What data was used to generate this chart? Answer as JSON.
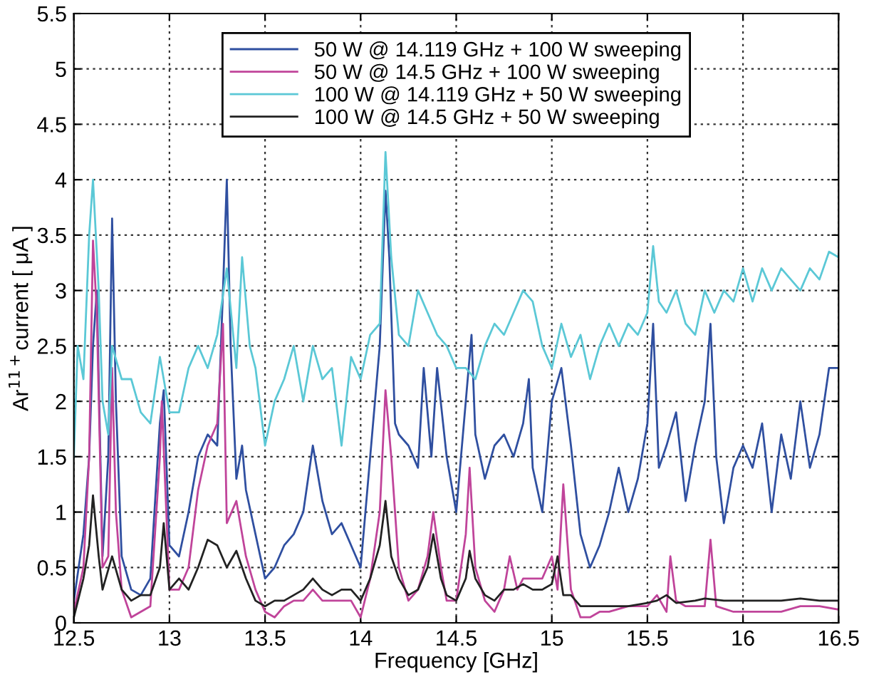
{
  "chart_data": {
    "type": "line",
    "xlabel": "Frequency [GHz]",
    "ylabel": "Ar$^{11+}$current [ μA ]",
    "xlim": [
      12.5,
      16.5
    ],
    "xticks": [
      12.5,
      13,
      13.5,
      14,
      14.5,
      15,
      15.5,
      16,
      16.5
    ],
    "ylim": [
      0,
      5.5
    ],
    "yticks": [
      0,
      0.5,
      1,
      1.5,
      2,
      2.5,
      3,
      3.5,
      4,
      4.5,
      5,
      5.5
    ],
    "grid": true,
    "legend": "top",
    "line_style": "solid",
    "series": [
      {
        "name": "50 W @ 14.119 GHz + 100 W sweeping",
        "color": "#2f4fa0",
        "x": [
          12.5,
          12.55,
          12.58,
          12.6,
          12.62,
          12.65,
          12.68,
          12.7,
          12.72,
          12.75,
          12.8,
          12.85,
          12.9,
          12.95,
          12.97,
          13.0,
          13.05,
          13.1,
          13.15,
          13.2,
          13.25,
          13.28,
          13.3,
          13.32,
          13.35,
          13.38,
          13.4,
          13.45,
          13.5,
          13.55,
          13.6,
          13.65,
          13.7,
          13.75,
          13.8,
          13.85,
          13.9,
          13.95,
          14.0,
          14.05,
          14.1,
          14.13,
          14.15,
          14.18,
          14.2,
          14.25,
          14.3,
          14.33,
          14.37,
          14.4,
          14.45,
          14.5,
          14.55,
          14.58,
          14.6,
          14.65,
          14.7,
          14.75,
          14.8,
          14.85,
          14.88,
          14.9,
          14.95,
          14.98,
          15.0,
          15.05,
          15.1,
          15.15,
          15.2,
          15.25,
          15.3,
          15.35,
          15.4,
          15.45,
          15.5,
          15.53,
          15.56,
          15.6,
          15.65,
          15.7,
          15.75,
          15.8,
          15.83,
          15.86,
          15.9,
          15.95,
          16.0,
          16.05,
          16.1,
          16.15,
          16.2,
          16.25,
          16.3,
          16.35,
          16.4,
          16.45,
          16.5
        ],
        "values": [
          0.2,
          0.8,
          1.5,
          2.5,
          3.0,
          0.6,
          1.5,
          3.65,
          2.0,
          0.6,
          0.3,
          0.25,
          0.4,
          1.8,
          2.1,
          0.7,
          0.6,
          1.0,
          1.5,
          1.7,
          1.6,
          3.0,
          4.0,
          2.5,
          1.3,
          1.6,
          1.2,
          0.8,
          0.4,
          0.5,
          0.7,
          0.8,
          1.0,
          1.6,
          1.1,
          0.8,
          0.9,
          0.7,
          0.5,
          1.5,
          2.5,
          3.9,
          3.3,
          1.8,
          1.7,
          1.6,
          1.4,
          2.3,
          1.5,
          2.3,
          1.5,
          1.0,
          2.0,
          2.6,
          1.7,
          1.3,
          1.6,
          1.7,
          1.5,
          1.8,
          2.2,
          1.4,
          1.0,
          1.6,
          2.0,
          2.3,
          1.6,
          0.8,
          0.5,
          0.7,
          1.0,
          1.4,
          1.0,
          1.3,
          1.8,
          2.7,
          1.4,
          1.6,
          1.9,
          1.1,
          1.6,
          2.0,
          2.7,
          1.5,
          0.9,
          1.4,
          1.6,
          1.4,
          1.8,
          1.0,
          1.7,
          1.3,
          2.0,
          1.4,
          1.7,
          2.3,
          2.3
        ]
      },
      {
        "name": "50 W @ 14.5 GHz + 100 W sweeping",
        "color": "#c0449a",
        "x": [
          12.5,
          12.55,
          12.58,
          12.6,
          12.62,
          12.65,
          12.68,
          12.7,
          12.72,
          12.75,
          12.8,
          12.85,
          12.9,
          12.95,
          12.96,
          13.0,
          13.05,
          13.1,
          13.15,
          13.2,
          13.25,
          13.28,
          13.3,
          13.35,
          13.4,
          13.45,
          13.5,
          13.55,
          13.6,
          13.65,
          13.7,
          13.75,
          13.8,
          13.85,
          13.9,
          13.95,
          14.0,
          14.05,
          14.1,
          14.13,
          14.16,
          14.2,
          14.25,
          14.3,
          14.35,
          14.38,
          14.42,
          14.45,
          14.5,
          14.55,
          14.57,
          14.6,
          14.65,
          14.7,
          14.75,
          14.78,
          14.82,
          14.85,
          14.9,
          14.95,
          15.0,
          15.03,
          15.06,
          15.1,
          15.15,
          15.2,
          15.25,
          15.3,
          15.4,
          15.5,
          15.55,
          15.6,
          15.62,
          15.65,
          15.7,
          15.8,
          15.83,
          15.86,
          15.95,
          16.0,
          16.1,
          16.2,
          16.3,
          16.4,
          16.5
        ],
        "values": [
          0.1,
          0.5,
          1.5,
          3.45,
          2.8,
          0.5,
          0.6,
          2.3,
          1.0,
          0.3,
          0.05,
          0.1,
          0.15,
          1.5,
          2.0,
          0.3,
          0.3,
          0.5,
          1.2,
          1.6,
          1.8,
          2.7,
          0.9,
          1.1,
          0.6,
          0.3,
          0.1,
          0.05,
          0.15,
          0.2,
          0.2,
          0.3,
          0.2,
          0.2,
          0.2,
          0.2,
          0.05,
          0.4,
          1.0,
          2.1,
          1.5,
          0.5,
          0.2,
          0.3,
          0.6,
          1.0,
          0.5,
          0.2,
          0.2,
          0.8,
          1.4,
          0.5,
          0.2,
          0.1,
          0.3,
          0.6,
          0.3,
          0.4,
          0.4,
          0.4,
          0.6,
          0.3,
          1.25,
          0.3,
          0.05,
          0.05,
          0.1,
          0.1,
          0.15,
          0.15,
          0.25,
          0.1,
          0.6,
          0.2,
          0.15,
          0.15,
          0.75,
          0.15,
          0.1,
          0.1,
          0.1,
          0.1,
          0.15,
          0.15,
          0.12
        ]
      },
      {
        "name": "100 W @ 14.119 GHz + 50 W sweeping",
        "color": "#5bc8d6",
        "x": [
          12.5,
          12.52,
          12.55,
          12.58,
          12.6,
          12.63,
          12.65,
          12.68,
          12.7,
          12.75,
          12.8,
          12.85,
          12.9,
          12.95,
          13.0,
          13.05,
          13.1,
          13.15,
          13.2,
          13.25,
          13.3,
          13.35,
          13.38,
          13.42,
          13.45,
          13.5,
          13.55,
          13.6,
          13.65,
          13.7,
          13.75,
          13.8,
          13.85,
          13.9,
          13.95,
          14.0,
          14.05,
          14.1,
          14.13,
          14.16,
          14.2,
          14.25,
          14.3,
          14.35,
          14.4,
          14.45,
          14.5,
          14.55,
          14.6,
          14.65,
          14.7,
          14.75,
          14.8,
          14.85,
          14.9,
          14.95,
          15.0,
          15.05,
          15.1,
          15.15,
          15.2,
          15.25,
          15.3,
          15.35,
          15.4,
          15.45,
          15.5,
          15.53,
          15.56,
          15.6,
          15.65,
          15.7,
          15.75,
          15.8,
          15.85,
          15.9,
          15.95,
          16.0,
          16.05,
          16.1,
          16.15,
          16.2,
          16.25,
          16.3,
          16.35,
          16.4,
          16.45,
          16.5
        ],
        "values": [
          1.5,
          2.5,
          2.2,
          3.5,
          4.0,
          3.0,
          2.0,
          1.7,
          2.5,
          2.2,
          2.2,
          1.9,
          1.8,
          2.4,
          1.9,
          1.9,
          2.3,
          2.5,
          2.3,
          2.6,
          3.2,
          2.3,
          3.3,
          2.5,
          2.3,
          1.6,
          2.0,
          2.2,
          2.5,
          2.0,
          2.5,
          2.2,
          2.3,
          1.6,
          2.4,
          2.2,
          2.6,
          2.7,
          4.25,
          3.3,
          2.6,
          2.5,
          3.0,
          2.8,
          2.6,
          2.5,
          2.3,
          2.3,
          2.2,
          2.5,
          2.7,
          2.6,
          2.8,
          3.0,
          2.9,
          2.5,
          2.3,
          2.7,
          2.4,
          2.6,
          2.2,
          2.5,
          2.7,
          2.5,
          2.7,
          2.6,
          2.8,
          3.4,
          2.9,
          2.8,
          3.0,
          2.7,
          2.6,
          3.0,
          2.8,
          3.0,
          2.9,
          3.2,
          2.9,
          3.2,
          3.0,
          3.2,
          3.1,
          3.0,
          3.2,
          3.1,
          3.35,
          3.3
        ]
      },
      {
        "name": "100 W @ 14.5 GHz + 50 W sweeping",
        "color": "#222222",
        "x": [
          12.5,
          12.55,
          12.58,
          12.6,
          12.63,
          12.65,
          12.7,
          12.75,
          12.8,
          12.85,
          12.9,
          12.95,
          12.97,
          13.0,
          13.05,
          13.1,
          13.15,
          13.2,
          13.25,
          13.3,
          13.35,
          13.4,
          13.45,
          13.5,
          13.55,
          13.6,
          13.65,
          13.7,
          13.75,
          13.8,
          13.85,
          13.9,
          13.95,
          14.0,
          14.05,
          14.1,
          14.13,
          14.16,
          14.2,
          14.25,
          14.3,
          14.35,
          14.38,
          14.42,
          14.45,
          14.5,
          14.55,
          14.57,
          14.6,
          14.65,
          14.7,
          14.75,
          14.8,
          14.85,
          14.9,
          14.95,
          15.0,
          15.03,
          15.06,
          15.1,
          15.15,
          15.2,
          15.3,
          15.4,
          15.5,
          15.55,
          15.6,
          15.65,
          15.75,
          15.8,
          15.9,
          16.0,
          16.1,
          16.2,
          16.3,
          16.4,
          16.5
        ],
        "values": [
          0.05,
          0.4,
          0.7,
          1.15,
          0.6,
          0.3,
          0.6,
          0.3,
          0.2,
          0.25,
          0.25,
          0.5,
          0.9,
          0.3,
          0.4,
          0.3,
          0.5,
          0.75,
          0.7,
          0.5,
          0.65,
          0.4,
          0.2,
          0.15,
          0.2,
          0.2,
          0.25,
          0.3,
          0.4,
          0.3,
          0.25,
          0.3,
          0.3,
          0.2,
          0.4,
          0.7,
          1.1,
          0.6,
          0.4,
          0.25,
          0.3,
          0.5,
          0.8,
          0.4,
          0.25,
          0.2,
          0.4,
          0.65,
          0.4,
          0.25,
          0.2,
          0.3,
          0.3,
          0.35,
          0.3,
          0.3,
          0.35,
          0.6,
          0.25,
          0.25,
          0.15,
          0.15,
          0.15,
          0.15,
          0.18,
          0.2,
          0.25,
          0.18,
          0.2,
          0.22,
          0.2,
          0.2,
          0.2,
          0.2,
          0.22,
          0.2,
          0.2
        ]
      }
    ]
  }
}
